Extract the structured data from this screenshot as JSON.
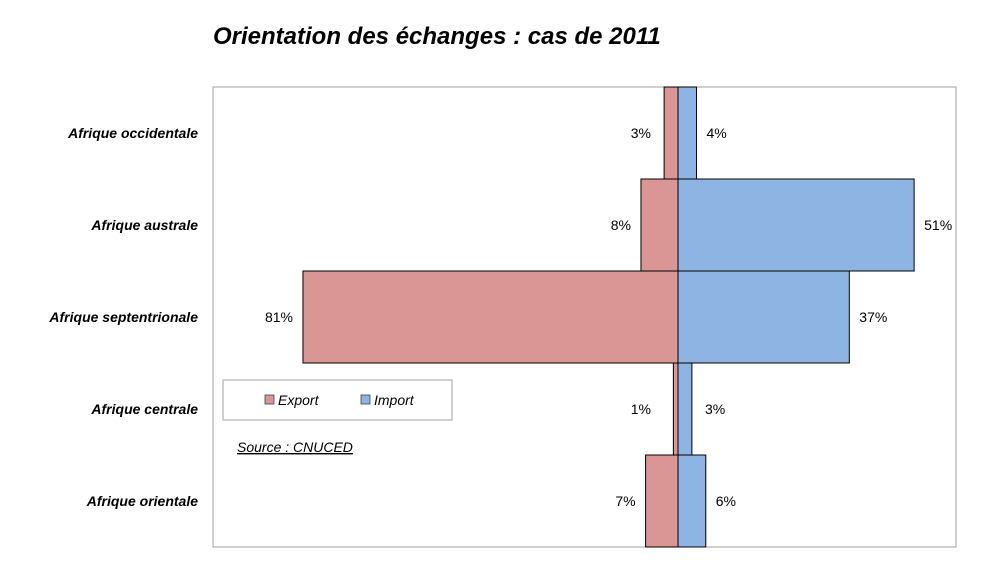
{
  "chart_data": {
    "type": "bar",
    "orientation": "horizontal",
    "title": "Orientation des échanges : cas de 2011",
    "categories": [
      "Afrique occidentale",
      "Afrique australe",
      "Afrique septentrionale",
      "Afrique centrale",
      "Afrique orientale"
    ],
    "series": [
      {
        "name": "Export",
        "values": [
          3,
          8,
          81,
          1,
          7
        ],
        "color": "#d99694",
        "direction": "left"
      },
      {
        "name": "Import",
        "values": [
          4,
          51,
          37,
          3,
          6
        ],
        "color": "#8eb4e3",
        "direction": "right"
      }
    ],
    "value_unit": "%",
    "legend_placement": "lower-left inside plot",
    "grid": false,
    "annotation": "Source : CNUCED"
  }
}
